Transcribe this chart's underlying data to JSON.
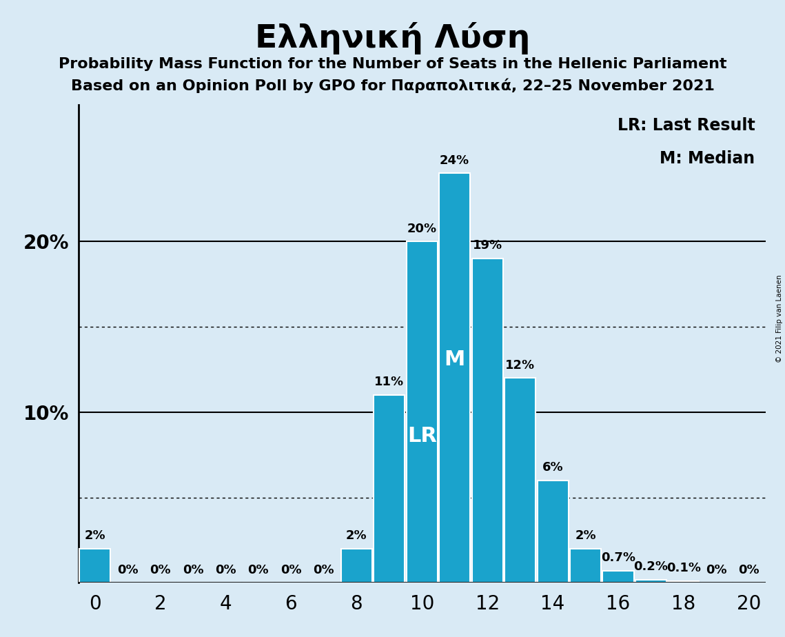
{
  "title": "Ελληνική Λύση",
  "subtitle1": "Probability Mass Function for the Number of Seats in the Hellenic Parliament",
  "subtitle2": "Based on an Opinion Poll by GPO for Παραπολιτικά, 22–25 November 2021",
  "copyright": "© 2021 Filip van Laenen",
  "seats": [
    0,
    1,
    2,
    3,
    4,
    5,
    6,
    7,
    8,
    9,
    10,
    11,
    12,
    13,
    14,
    15,
    16,
    17,
    18,
    19,
    20
  ],
  "probabilities": [
    0.02,
    0.0,
    0.0,
    0.0,
    0.0,
    0.0,
    0.0,
    0.0,
    0.02,
    0.11,
    0.2,
    0.24,
    0.19,
    0.12,
    0.06,
    0.02,
    0.007,
    0.002,
    0.001,
    0.0,
    0.0
  ],
  "bar_color": "#1aa3cc",
  "bar_edge_color": "#ffffff",
  "background_color": "#d9eaf5",
  "last_result": 10,
  "median": 11,
  "lr_label": "LR",
  "m_label": "M",
  "legend_lr": "LR: Last Result",
  "legend_m": "M: Median",
  "xlim": [
    -0.5,
    20.5
  ],
  "ylim": [
    0,
    0.28
  ],
  "xticks": [
    0,
    2,
    4,
    6,
    8,
    10,
    12,
    14,
    16,
    18,
    20
  ],
  "dotted_gridlines": [
    0.05,
    0.15
  ],
  "solid_gridlines": [
    0.1,
    0.2
  ],
  "percent_labels": {
    "0": "2%",
    "1": "0%",
    "2": "0%",
    "3": "0%",
    "4": "0%",
    "5": "0%",
    "6": "0%",
    "7": "0%",
    "8": "2%",
    "9": "11%",
    "10": "20%",
    "11": "24%",
    "12": "19%",
    "13": "12%",
    "14": "6%",
    "15": "2%",
    "16": "0.7%",
    "17": "0.2%",
    "18": "0.1%",
    "19": "0%",
    "20": "0%"
  },
  "title_fontsize": 34,
  "subtitle_fontsize": 16,
  "tick_fontsize": 20,
  "legend_fontsize": 17,
  "bar_label_fontsize": 13,
  "lr_fontsize": 22,
  "m_fontsize": 22
}
